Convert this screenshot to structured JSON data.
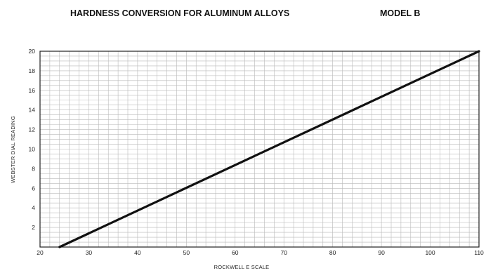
{
  "chart_data": {
    "type": "line",
    "title": "HARDNESS CONVERSION FOR ALUMINUM ALLOYS",
    "subtitle": "MODEL B",
    "xlabel": "ROCKWELL  E  SCALE",
    "ylabel": "WEBSTER DIAL READING",
    "xlim": [
      20,
      110
    ],
    "ylim": [
      0,
      20
    ],
    "x_ticks": [
      "20",
      "30",
      "40",
      "50",
      "60",
      "70",
      "80",
      "90",
      "100",
      "110"
    ],
    "y_ticks": [
      "2",
      "4",
      "6",
      "8",
      "10",
      "12",
      "14",
      "16",
      "18",
      "20"
    ],
    "grid": true,
    "series": [
      {
        "x": [
          24,
          110
        ],
        "y": [
          0,
          20
        ]
      }
    ]
  }
}
